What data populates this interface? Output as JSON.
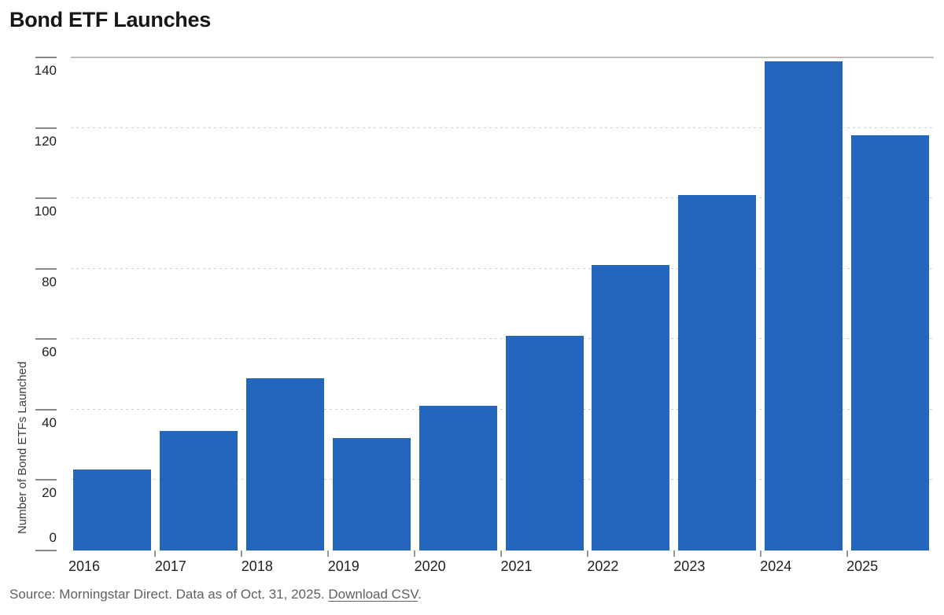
{
  "page": {
    "title": "Bond ETF Launches"
  },
  "chart_data": {
    "type": "bar",
    "title": "Bond ETF Launches",
    "categories": [
      "2016",
      "2017",
      "2018",
      "2019",
      "2020",
      "2021",
      "2022",
      "2023",
      "2024",
      "2025"
    ],
    "values": [
      23,
      34,
      49,
      32,
      41,
      61,
      81,
      101,
      139,
      118
    ],
    "xlabel": "",
    "ylabel": "Number of Bond ETFs Launched",
    "ylim": [
      0,
      140
    ],
    "yticks": [
      0,
      20,
      40,
      60,
      80,
      100,
      120,
      140
    ],
    "grid": "horizontal-dotted, top line solid",
    "legend": "none",
    "bar_color": "#2566bd"
  },
  "footer": {
    "source_text": "Source: Morningstar Direct. Data as of Oct. 31, 2025. ",
    "link_text": "Download CSV",
    "after_link": "."
  },
  "colors": {
    "bar": "#2566bd",
    "grid_dotted": "#cfcfcf",
    "grid_top_solid": "#bcbcbc",
    "tick": "#8a8a8a",
    "title_text": "#161616",
    "axis_text": "#222222",
    "footer_text": "#606060"
  }
}
